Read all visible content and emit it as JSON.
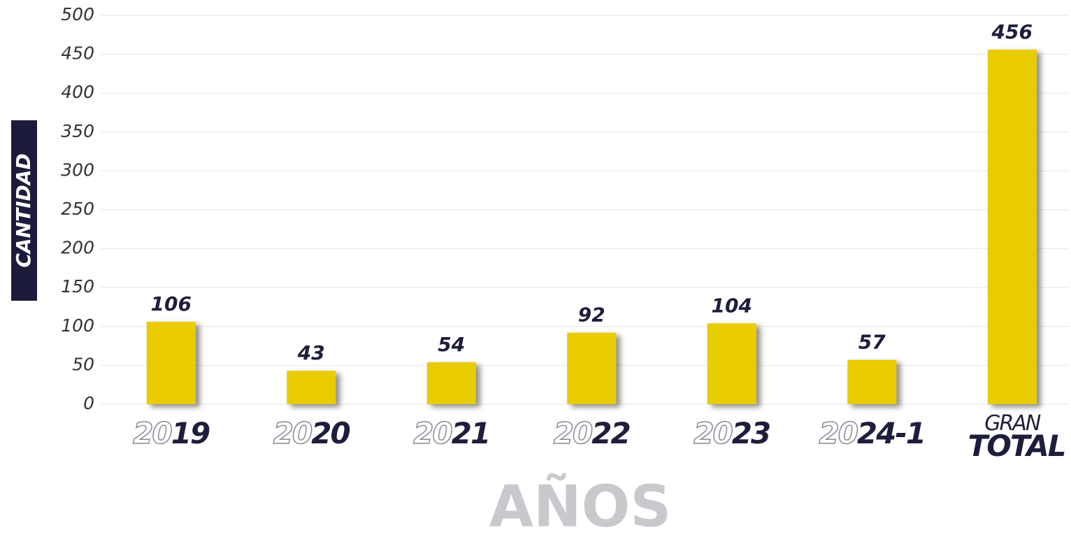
{
  "chart_data": {
    "type": "bar",
    "categories": [
      "2019",
      "2020",
      "2021",
      "2022",
      "2023",
      "2024-1",
      "GRAN TOTAL"
    ],
    "values": [
      106,
      43,
      54,
      92,
      104,
      57,
      456
    ],
    "color": "#e8cc00",
    "ylim": [
      0,
      500
    ],
    "yticks": [
      0,
      50,
      100,
      150,
      200,
      250,
      300,
      350,
      400,
      450,
      500
    ],
    "grid": true,
    "ylabel": "CANTIDAD",
    "xlabel": "AÑOS"
  }
}
